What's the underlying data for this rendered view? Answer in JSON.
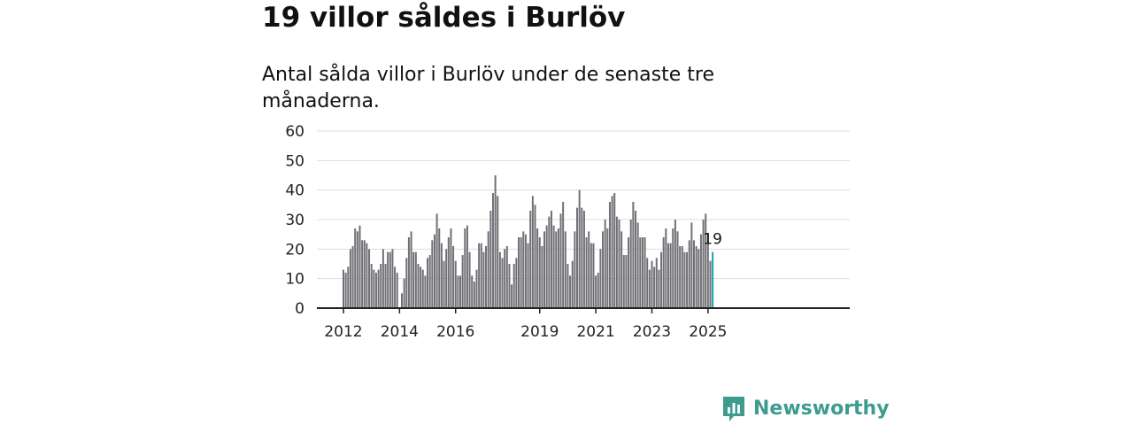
{
  "title": "19 villor såldes i Burlöv",
  "subtitle": "Antal sålda villor i Burlöv under de senaste tre månaderna.",
  "brand": {
    "name": "Newsworthy",
    "color": "#3d9c8e"
  },
  "colors": {
    "bars": "#707076",
    "highlight": "#1aa3b0",
    "grid": "#dddddd",
    "axis": "#222222"
  },
  "chart_data": {
    "type": "bar",
    "x_unit": "month",
    "ylim": [
      0,
      60
    ],
    "yticks": [
      0,
      10,
      20,
      30,
      40,
      50,
      60
    ],
    "xticks": [
      "2012",
      "2014",
      "2016",
      "2019",
      "2021",
      "2023",
      "2025"
    ],
    "grid": true,
    "start": "2012-01",
    "end": "2025-03",
    "values": [
      13,
      12,
      14,
      20,
      21,
      27,
      26,
      28,
      23,
      23,
      22,
      20,
      15,
      13,
      12,
      13,
      15,
      20,
      15,
      19,
      19,
      20,
      14,
      12,
      0,
      5,
      10,
      17,
      24,
      26,
      19,
      19,
      15,
      14,
      13,
      11,
      17,
      18,
      23,
      25,
      32,
      27,
      22,
      16,
      20,
      24,
      27,
      21,
      16,
      11,
      11,
      18,
      27,
      28,
      19,
      11,
      9,
      13,
      22,
      22,
      19,
      21,
      26,
      33,
      39,
      45,
      38,
      19,
      17,
      20,
      21,
      15,
      8,
      15,
      17,
      24,
      24,
      26,
      25,
      22,
      33,
      38,
      35,
      27,
      24,
      21,
      26,
      28,
      31,
      33,
      28,
      26,
      27,
      32,
      36,
      26,
      15,
      11,
      16,
      26,
      34,
      40,
      34,
      33,
      24,
      26,
      22,
      22,
      11,
      12,
      20,
      26,
      30,
      27,
      36,
      38,
      39,
      31,
      30,
      26,
      18,
      18,
      24,
      30,
      36,
      33,
      29,
      24,
      24,
      24,
      17,
      13,
      16,
      14,
      17,
      13,
      19,
      24,
      27,
      22,
      22,
      27,
      30,
      26,
      21,
      21,
      19,
      19,
      23,
      29,
      23,
      21,
      20,
      25,
      30,
      32,
      25,
      16,
      19
    ],
    "highlight_last": true,
    "annotation": "19"
  }
}
